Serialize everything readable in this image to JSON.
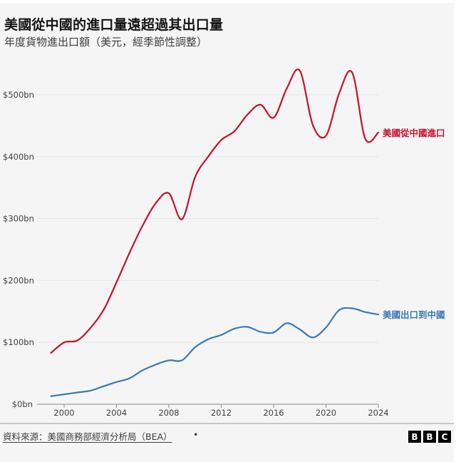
{
  "header": {
    "title": "美國從中國的進口量遠超過其出口量",
    "subtitle": "年度貨物進出口額（美元，經季節性調整）"
  },
  "footer": {
    "source": "資料來源：美國商務部經濟分析局（BEA）",
    "separator": "•",
    "logo_letters": [
      "B",
      "B",
      "C"
    ]
  },
  "chart_data": {
    "type": "line",
    "title": "美國從中國的進口量遠超過其出口量",
    "subtitle": "年度貨物進出口額（美元，經季節性調整）",
    "xlabel": "",
    "ylabel": "",
    "x": [
      1999,
      2000,
      2001,
      2002,
      2003,
      2004,
      2005,
      2006,
      2007,
      2008,
      2009,
      2010,
      2011,
      2012,
      2013,
      2014,
      2015,
      2016,
      2017,
      2018,
      2019,
      2020,
      2021,
      2022,
      2023,
      2024
    ],
    "xlim": [
      1999,
      2024
    ],
    "ylim": [
      0,
      540
    ],
    "x_ticks": [
      2000,
      2004,
      2008,
      2012,
      2016,
      2020,
      2024
    ],
    "x_tick_labels": [
      "2000",
      "2004",
      "2008",
      "2012",
      "2016",
      "2020",
      "2024"
    ],
    "y_ticks": [
      0,
      100,
      200,
      300,
      400,
      500
    ],
    "y_tick_labels": [
      "$0bn",
      "$100bn",
      "$200bn",
      "$300bn",
      "$400bn",
      "$500bn"
    ],
    "grid": "horizontal",
    "legend": "direct-labels-right",
    "series": [
      {
        "name": "美國從中國進口",
        "color": "#c8102e",
        "values": [
          83,
          100,
          103,
          123,
          152,
          197,
          245,
          289,
          325,
          341,
          299,
          367,
          400,
          427,
          441,
          468,
          484,
          463,
          510,
          539,
          451,
          434,
          502,
          536,
          429,
          439
        ]
      },
      {
        "name": "美國出口到中國",
        "color": "#3a79b4",
        "values": [
          13,
          16,
          19,
          22,
          29,
          36,
          42,
          55,
          64,
          71,
          71,
          92,
          105,
          112,
          122,
          125,
          117,
          116,
          131,
          121,
          108,
          124,
          152,
          155,
          149,
          145
        ]
      }
    ]
  }
}
